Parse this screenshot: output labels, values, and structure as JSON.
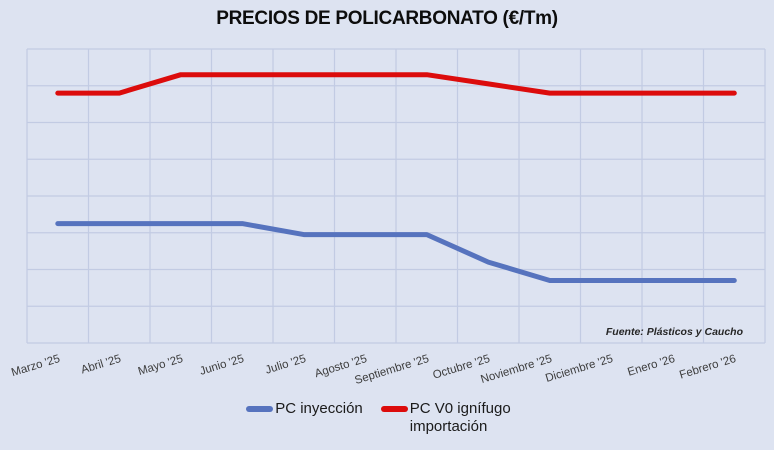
{
  "title": "PRECIOS DE POLICARBONATO (€/Tm)",
  "source_note": "Fuente: Plásticos y Caucho",
  "colors": {
    "background": "#dde3f1",
    "grid": "#c2cbe3",
    "title_text": "#0d0d0d",
    "axis_text": "#3d3d3d",
    "source_text": "#262626"
  },
  "legend": [
    {
      "label": "PC inyección",
      "color": "#5673BE"
    },
    {
      "label": "PC V0 ignífugo importación",
      "color": "#DC0C0C"
    }
  ],
  "chart_data": {
    "type": "line",
    "title": "PRECIOS DE POLICARBONATO (€/Tm)",
    "categories": [
      "Marzo '25",
      "Abril '25",
      "Mayo '25",
      "Junio '25",
      "Julio '25",
      "Agosto '25",
      "Septiembre '25",
      "Octubre '25",
      "Noviembre '25",
      "Diciembre '25",
      "Enero '26",
      "Febrero '26"
    ],
    "series": [
      {
        "name": "PC inyección",
        "color": "#5673BE",
        "values": [
          3.25,
          3.25,
          3.25,
          3.25,
          2.95,
          2.95,
          2.95,
          2.2,
          1.7,
          1.7,
          1.7,
          1.7
        ]
      },
      {
        "name": "PC V0 ignífugo importación",
        "color": "#DC0C0C",
        "values": [
          6.8,
          6.8,
          7.3,
          7.3,
          7.3,
          7.3,
          7.3,
          7.05,
          6.8,
          6.8,
          6.8,
          6.8
        ]
      }
    ],
    "xlabel": "",
    "ylabel": "",
    "ylim": [
      0,
      8
    ],
    "grid_rows": 8,
    "grid": true,
    "y_axis_tick_labels_visible": false,
    "value_scale_note": "y values expressed in gridline-row units; the source chart displays no y-axis tick labels",
    "legend_position": "bottom",
    "x_tick_rotation_deg": -17
  }
}
